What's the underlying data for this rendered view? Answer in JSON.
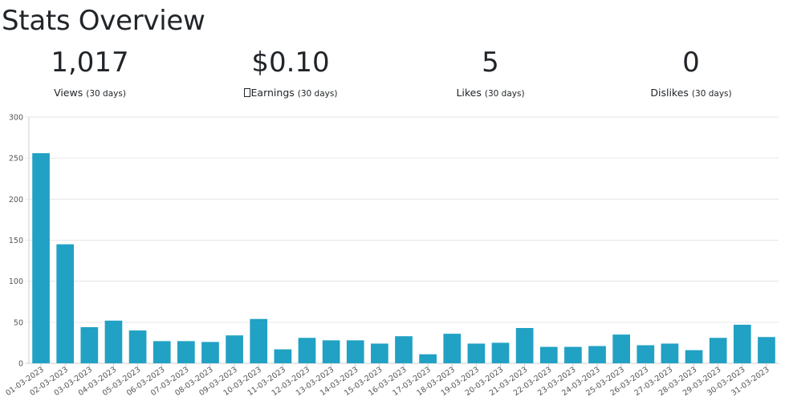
{
  "header": {
    "title": "Stats Overview"
  },
  "stats": [
    {
      "value": "1,017",
      "label": "Views",
      "period": "(30 days)",
      "icon": ""
    },
    {
      "value": "$0.10",
      "label": "Earnings",
      "period": "(30 days)",
      "icon": "earnings-icon"
    },
    {
      "value": "5",
      "label": "Likes",
      "period": "(30 days)",
      "icon": ""
    },
    {
      "value": "0",
      "label": "Dislikes",
      "period": "(30 days)",
      "icon": ""
    }
  ],
  "colors": {
    "bar": "#21a1c4",
    "grid": "#e6e6e6",
    "axis": "#cccccc"
  },
  "chart_data": {
    "type": "bar",
    "title": "",
    "xlabel": "",
    "ylabel": "",
    "ylim": [
      0,
      300
    ],
    "yticks": [
      0,
      50,
      100,
      150,
      200,
      250,
      300
    ],
    "grid": true,
    "categories": [
      "01-03-2023",
      "02-03-2023",
      "03-03-2023",
      "04-03-2023",
      "05-03-2023",
      "06-03-2023",
      "07-03-2023",
      "08-03-2023",
      "09-03-2023",
      "10-03-2023",
      "11-03-2023",
      "12-03-2023",
      "13-03-2023",
      "14-03-2023",
      "15-03-2023",
      "16-03-2023",
      "17-03-2023",
      "18-03-2023",
      "19-03-2023",
      "20-03-2023",
      "21-03-2023",
      "22-03-2023",
      "23-03-2023",
      "24-03-2023",
      "25-03-2023",
      "26-03-2023",
      "27-03-2023",
      "28-03-2023",
      "29-03-2023",
      "30-03-2023",
      "31-03-2023"
    ],
    "values": [
      256,
      145,
      44,
      52,
      40,
      27,
      27,
      26,
      34,
      54,
      17,
      31,
      28,
      28,
      24,
      33,
      11,
      36,
      24,
      25,
      43,
      20,
      20,
      21,
      35,
      22,
      24,
      16,
      31,
      47,
      32
    ]
  }
}
